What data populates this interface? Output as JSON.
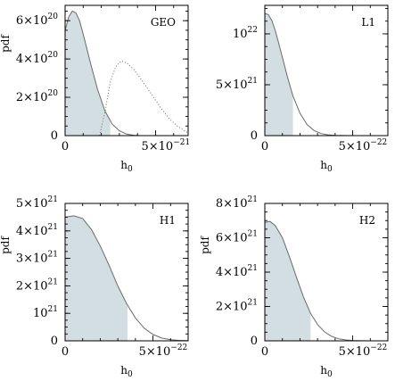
{
  "chart_data": [
    {
      "type": "area",
      "name": "GEO",
      "xlabel_main": "h",
      "xlabel_sub": "0",
      "ylabel": "pdf",
      "x_tick_labels": [
        {
          "mantissa": "0",
          "exp": ""
        },
        {
          "mantissa": "5×10",
          "exp": "−21"
        }
      ],
      "y_tick_labels": [
        {
          "mantissa": "0",
          "exp": ""
        },
        {
          "mantissa": "2×10",
          "exp": "20"
        },
        {
          "mantissa": "4×10",
          "exp": "20"
        },
        {
          "mantissa": "6×10",
          "exp": "20"
        }
      ],
      "xlim": [
        0,
        6.8e-21
      ],
      "ylim": [
        0,
        6.8e+20
      ],
      "xticks": [
        0,
        5e-21
      ],
      "yticks": [
        0,
        2e+20,
        4e+20,
        6e+20
      ],
      "series": [
        {
          "style": "solid",
          "x": [
            0,
            2e-22,
            4e-22,
            6e-22,
            8e-22,
            1e-21,
            1.4e-21,
            1.8e-21,
            2.2e-21,
            2.6e-21,
            3e-21,
            3.4e-21,
            3.8e-21,
            4.2e-21
          ],
          "y": [
            5.5e+20,
            6.2e+20,
            6.5e+20,
            6.4e+20,
            6e+20,
            5.3e+20,
            3.8e+20,
            2.4e+20,
            1.3e+20,
            6e+19,
            2.5e+19,
            8e+18,
            2e+18,
            0
          ]
        },
        {
          "style": "dotted",
          "x": [
            1.9e-21,
            2.2e-21,
            2.5e-21,
            2.8e-21,
            3.1e-21,
            3.4e-21,
            3.8e-21,
            4.2e-21,
            4.6e-21,
            5e-21,
            5.4e-21,
            5.8e-21,
            6.2e-21,
            6.6e-21,
            6.8e-21
          ],
          "y": [
            0,
            1.2e+20,
            2.8e+20,
            3.6e+20,
            3.9e+20,
            3.8e+20,
            3.45e+20,
            2.95e+20,
            2.4e+20,
            1.85e+20,
            1.3e+20,
            8.5e+19,
            5e+19,
            2.5e+19,
            1.5e+19
          ]
        }
      ],
      "shaded_upper_x": 2.5e-21
    },
    {
      "type": "area",
      "name": "L1",
      "xlabel_main": "h",
      "xlabel_sub": "0",
      "ylabel": "",
      "x_tick_labels": [
        {
          "mantissa": "0",
          "exp": ""
        },
        {
          "mantissa": "5×10",
          "exp": "−22"
        }
      ],
      "y_tick_labels": [
        {
          "mantissa": "0",
          "exp": ""
        },
        {
          "mantissa": "5×10",
          "exp": "21"
        },
        {
          "mantissa": "10",
          "exp": "22"
        }
      ],
      "xlim": [
        0,
        7e-22
      ],
      "ylim": [
        0,
        1.28e+22
      ],
      "xticks": [
        0,
        5e-22
      ],
      "yticks": [
        0,
        5e+21,
        1e+22
      ],
      "series": [
        {
          "style": "solid",
          "x": [
            0,
            2e-23,
            4e-23,
            6e-23,
            8e-23,
            1e-22,
            1.3e-22,
            1.6e-22,
            2e-22,
            2.4e-22,
            2.8e-22,
            3.2e-22,
            3.6e-22,
            4e-22,
            4.5e-22,
            5e-22,
            5.5e-22
          ],
          "y": [
            1.2e+22,
            1.19e+22,
            1.13e+22,
            1.03e+22,
            9e+21,
            7.7e+21,
            5.7e+21,
            3.9e+21,
            2.2e+21,
            1.1e+21,
            5e+20,
            2e+20,
            8e+19,
            3e+19,
            1e+19,
            3e+18,
            0
          ]
        }
      ],
      "shaded_upper_x": 1.6e-22
    },
    {
      "type": "area",
      "name": "H1",
      "xlabel_main": "h",
      "xlabel_sub": "0",
      "ylabel": "pdf",
      "x_tick_labels": [
        {
          "mantissa": "0",
          "exp": ""
        },
        {
          "mantissa": "5×10",
          "exp": "−22"
        }
      ],
      "y_tick_labels": [
        {
          "mantissa": "0",
          "exp": ""
        },
        {
          "mantissa": "10",
          "exp": "21"
        },
        {
          "mantissa": "2×10",
          "exp": "21"
        },
        {
          "mantissa": "3×10",
          "exp": "21"
        },
        {
          "mantissa": "4×10",
          "exp": "21"
        },
        {
          "mantissa": "5×10",
          "exp": "21"
        }
      ],
      "xlim": [
        0,
        7e-22
      ],
      "ylim": [
        0,
        5e+21
      ],
      "xticks": [
        0,
        5e-22
      ],
      "yticks": [
        0,
        1e+21,
        2e+21,
        3e+21,
        4e+21,
        5e+21
      ],
      "series": [
        {
          "style": "solid",
          "x": [
            0,
            5e-23,
            1e-22,
            1.5e-22,
            2e-22,
            2.5e-22,
            3e-22,
            3.5e-22,
            4e-22,
            4.5e-22,
            5e-22,
            5.5e-22,
            6e-22,
            6.5e-22,
            7e-22
          ],
          "y": [
            4.5e+21,
            4.55e+21,
            4.45e+21,
            4.05e+21,
            3.45e+21,
            2.75e+21,
            2e+21,
            1.35e+21,
            8.3e+20,
            4.6e+20,
            2.3e+20,
            1e+20,
            4e+19,
            1.5e+19,
            5e+18
          ]
        }
      ],
      "shaded_upper_x": 3.55e-22
    },
    {
      "type": "area",
      "name": "H2",
      "xlabel_main": "h",
      "xlabel_sub": "0",
      "ylabel": "pdf",
      "x_tick_labels": [
        {
          "mantissa": "0",
          "exp": ""
        },
        {
          "mantissa": "5×10",
          "exp": "−22"
        }
      ],
      "y_tick_labels": [
        {
          "mantissa": "0",
          "exp": ""
        },
        {
          "mantissa": "2×10",
          "exp": "21"
        },
        {
          "mantissa": "4×10",
          "exp": "21"
        },
        {
          "mantissa": "6×10",
          "exp": "21"
        },
        {
          "mantissa": "8×10",
          "exp": "21"
        }
      ],
      "xlim": [
        0,
        7e-22
      ],
      "ylim": [
        0,
        8e+21
      ],
      "xticks": [
        0,
        5e-22
      ],
      "yticks": [
        0,
        2e+21,
        4e+21,
        6e+21,
        8e+21
      ],
      "series": [
        {
          "style": "solid",
          "x": [
            0,
            3e-23,
            6e-23,
            1e-22,
            1.4e-22,
            1.8e-22,
            2.2e-22,
            2.6e-22,
            3e-22,
            3.4e-22,
            3.8e-22,
            4.2e-22,
            4.6e-22,
            5e-22,
            5.5e-22,
            6e-22
          ],
          "y": [
            6.9e+21,
            6.95e+21,
            6.7e+21,
            6e+21,
            4.9e+21,
            3.7e+21,
            2.55e+21,
            1.6e+21,
            9.5e+20,
            5.2e+20,
            2.6e+20,
            1.2e+20,
            5e+19,
            2e+19,
            5e+18,
            0
          ]
        }
      ],
      "shaded_upper_x": 2.6e-22
    }
  ]
}
